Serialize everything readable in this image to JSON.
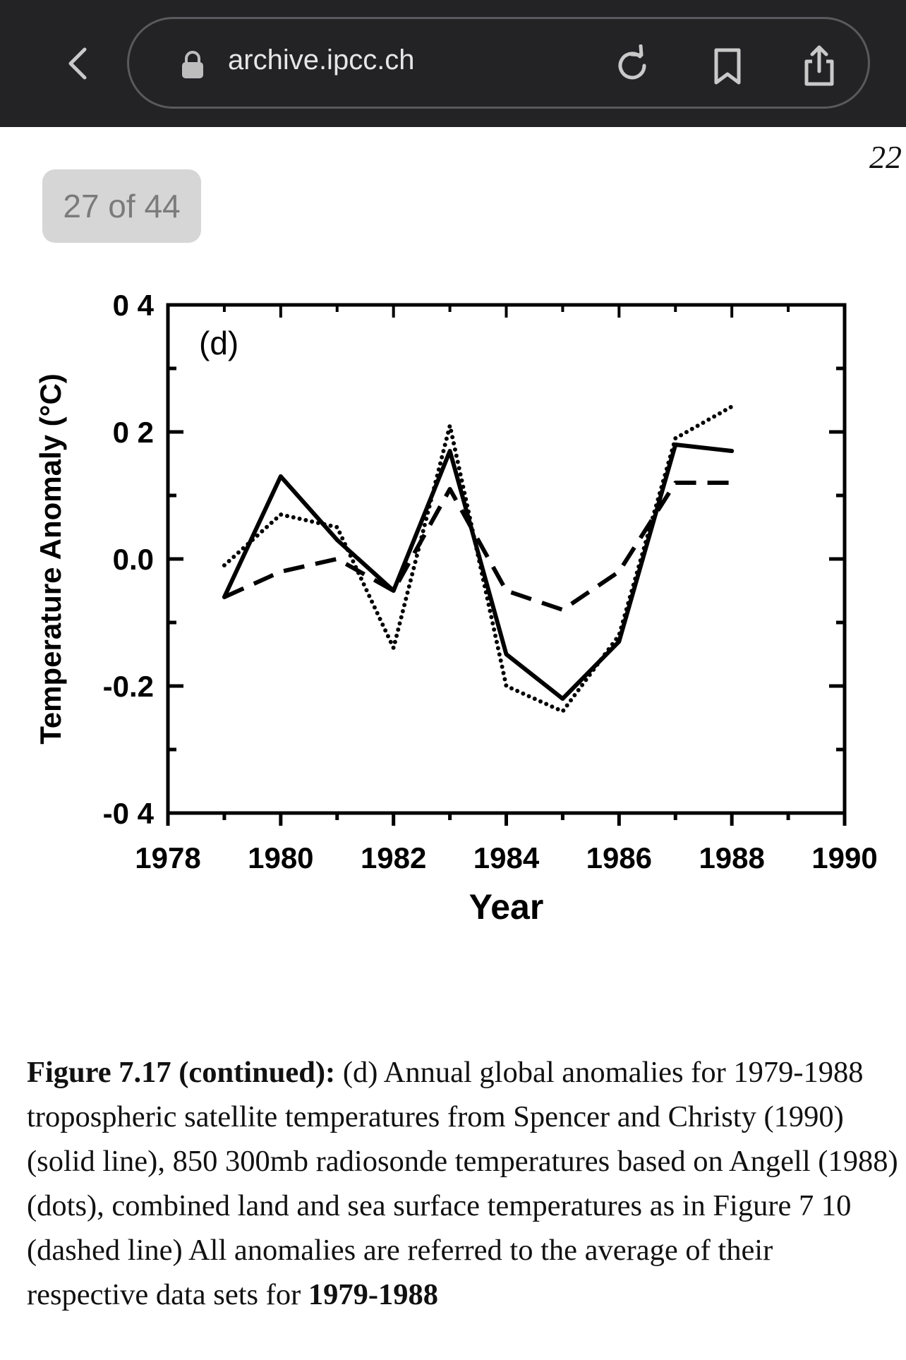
{
  "browser": {
    "url": "archive.ipcc.ch",
    "icons": [
      "chevron-left-icon",
      "lock-icon",
      "reload-icon",
      "bookmark-icon",
      "share-icon"
    ]
  },
  "document": {
    "page_number": "22",
    "page_indicator": "27 of 44",
    "caption": {
      "label": "Figure 7.17",
      "continued": "(continued):",
      "text": "(d) Annual global anomalies for 1979-1988 tropospheric satellite temperatures from Spencer and Christy (1990) (solid line), 850 300mb radiosonde temperatures based on Angell (1988) (dots), combined land and sea surface temperatures as in Figure 7 10 (dashed line) All anomalies are referred to the average of their respective data sets for",
      "period": "1979-1988"
    }
  },
  "chart_data": {
    "type": "line",
    "panel_label": "(d)",
    "xlabel": "Year",
    "ylabel": "Temperature Anomaly (°C)",
    "xlim": [
      1978,
      1990
    ],
    "ylim": [
      -0.4,
      0.4
    ],
    "x_ticks": [
      1978,
      1980,
      1982,
      1984,
      1986,
      1988,
      1990
    ],
    "x_tick_labels": [
      "1978",
      "1980",
      "1982",
      "1984",
      "1986",
      "1988",
      "1990"
    ],
    "y_ticks": [
      0.4,
      0.2,
      0.0,
      -0.2,
      -0.4
    ],
    "y_tick_labels": [
      "0 4",
      "0 2",
      "0.0",
      "-0.2",
      "-0 4"
    ],
    "x": [
      1979,
      1980,
      1981,
      1982,
      1983,
      1984,
      1985,
      1986,
      1987,
      1988
    ],
    "series": [
      {
        "name": "Spencer and Christy (1990) satellite",
        "style": "solid",
        "values": [
          -0.06,
          0.13,
          0.03,
          -0.05,
          0.17,
          -0.15,
          -0.22,
          -0.13,
          0.18,
          0.17
        ]
      },
      {
        "name": "Angell (1988) 850-300mb radiosonde",
        "style": "dotted",
        "values": [
          -0.01,
          0.07,
          0.05,
          -0.14,
          0.21,
          -0.2,
          -0.24,
          -0.12,
          0.19,
          0.24
        ]
      },
      {
        "name": "Land and sea surface",
        "style": "dashed",
        "values": [
          -0.06,
          -0.02,
          0.0,
          -0.05,
          0.11,
          -0.05,
          -0.08,
          -0.02,
          0.12,
          0.12
        ]
      }
    ],
    "colors": {
      "line": "#000000"
    }
  }
}
